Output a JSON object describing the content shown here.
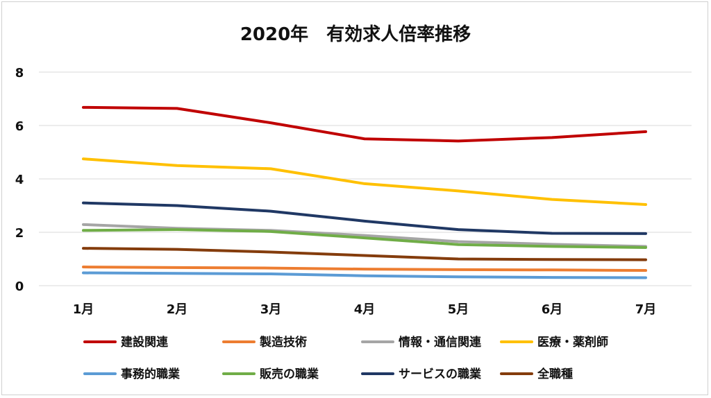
{
  "chart_data": {
    "type": "line",
    "title": "2020年　有効求人倍率推移",
    "xlabel": "",
    "ylabel": "",
    "categories": [
      "1月",
      "2月",
      "3月",
      "4月",
      "5月",
      "6月",
      "7月"
    ],
    "ylim": [
      0,
      8
    ],
    "yticks": [
      0,
      2,
      4,
      6,
      8
    ],
    "grid": true,
    "legend_position": "bottom",
    "series": [
      {
        "name": "建設関連",
        "color": "#C00000",
        "values": [
          6.68,
          6.64,
          6.1,
          5.5,
          5.42,
          5.55,
          5.77
        ]
      },
      {
        "name": "製造技術",
        "color": "#ED7D31",
        "values": [
          0.7,
          0.68,
          0.66,
          0.62,
          0.6,
          0.59,
          0.57
        ]
      },
      {
        "name": "情報・通信関連",
        "color": "#A5A5A5",
        "values": [
          2.29,
          2.15,
          2.07,
          1.88,
          1.65,
          1.55,
          1.47
        ]
      },
      {
        "name": "医療・薬剤師",
        "color": "#FFC000",
        "values": [
          4.75,
          4.5,
          4.38,
          3.82,
          3.55,
          3.23,
          3.04
        ]
      },
      {
        "name": "事務的職業",
        "color": "#5B9BD5",
        "values": [
          0.48,
          0.46,
          0.44,
          0.37,
          0.33,
          0.31,
          0.3
        ]
      },
      {
        "name": "販売の職業",
        "color": "#70AD47",
        "values": [
          2.07,
          2.1,
          2.03,
          1.79,
          1.54,
          1.47,
          1.43
        ]
      },
      {
        "name": "サービスの職業",
        "color": "#203864",
        "values": [
          3.1,
          3.0,
          2.79,
          2.42,
          2.1,
          1.96,
          1.95
        ]
      },
      {
        "name": "全職種",
        "color": "#843C0C",
        "values": [
          1.4,
          1.36,
          1.26,
          1.13,
          1.0,
          0.98,
          0.97
        ]
      }
    ]
  }
}
